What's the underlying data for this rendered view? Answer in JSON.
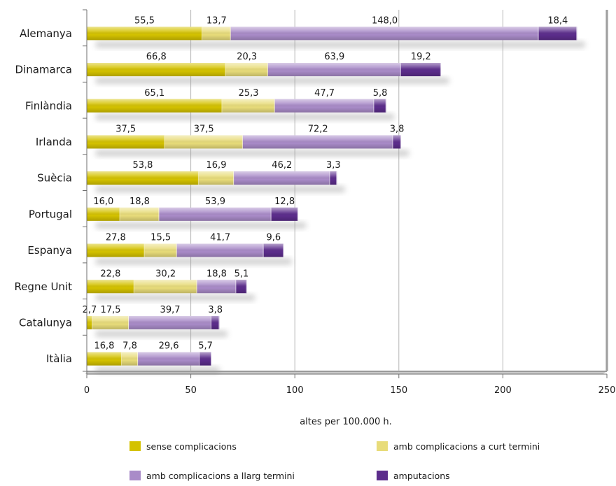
{
  "chart_data": {
    "type": "bar",
    "orientation": "horizontal",
    "stacked": true,
    "categories": [
      "Alemanya",
      "Dinamarca",
      "Finlàndia",
      "Irlanda",
      "Suècia",
      "Portugal",
      "Espanya",
      "Regne Unit",
      "Catalunya",
      "Itàlia"
    ],
    "series": [
      {
        "name": "sense complicacions",
        "color": "#d4c200",
        "values": [
          55.5,
          66.8,
          65.1,
          37.5,
          53.8,
          16.0,
          27.8,
          22.8,
          2.7,
          16.8
        ],
        "labels": [
          "55,5",
          "66,8",
          "65,1",
          "37,5",
          "53,8",
          "16,0",
          "27,8",
          "22,8",
          "2,7",
          "16,8"
        ]
      },
      {
        "name": "amb complicacions a curt termini",
        "color": "#e8dc7a",
        "values": [
          13.7,
          20.3,
          25.3,
          37.5,
          16.9,
          18.8,
          15.5,
          30.2,
          17.5,
          7.8
        ],
        "labels": [
          "13,7",
          "20,3",
          "25,3",
          "37,5",
          "16,9",
          "18,8",
          "15,5",
          "30,2",
          "17,5",
          "7,8"
        ]
      },
      {
        "name": "amb complicacions a llarg termini",
        "color": "#a98bc8",
        "values": [
          148.0,
          63.9,
          47.7,
          72.2,
          46.2,
          53.9,
          41.7,
          18.8,
          39.7,
          29.6
        ],
        "labels": [
          "148,0",
          "63,9",
          "47,7",
          "72,2",
          "46,2",
          "53,9",
          "41,7",
          "18,8",
          "39,7",
          "29,6"
        ]
      },
      {
        "name": "amputacions",
        "color": "#5c2d8c",
        "values": [
          18.4,
          19.2,
          5.8,
          3.8,
          3.3,
          12.8,
          9.6,
          5.1,
          3.8,
          5.7
        ],
        "labels": [
          "18,4",
          "19,2",
          "5,8",
          "3,8",
          "3,3",
          "12,8",
          "9,6",
          "5,1",
          "3,8",
          "5,7"
        ]
      }
    ],
    "xlabel": "altes per 100.000 h.",
    "xlim": [
      0,
      250
    ],
    "xticks": [
      0,
      50,
      100,
      150,
      200,
      250
    ],
    "grid": true,
    "legend_position": "bottom"
  }
}
